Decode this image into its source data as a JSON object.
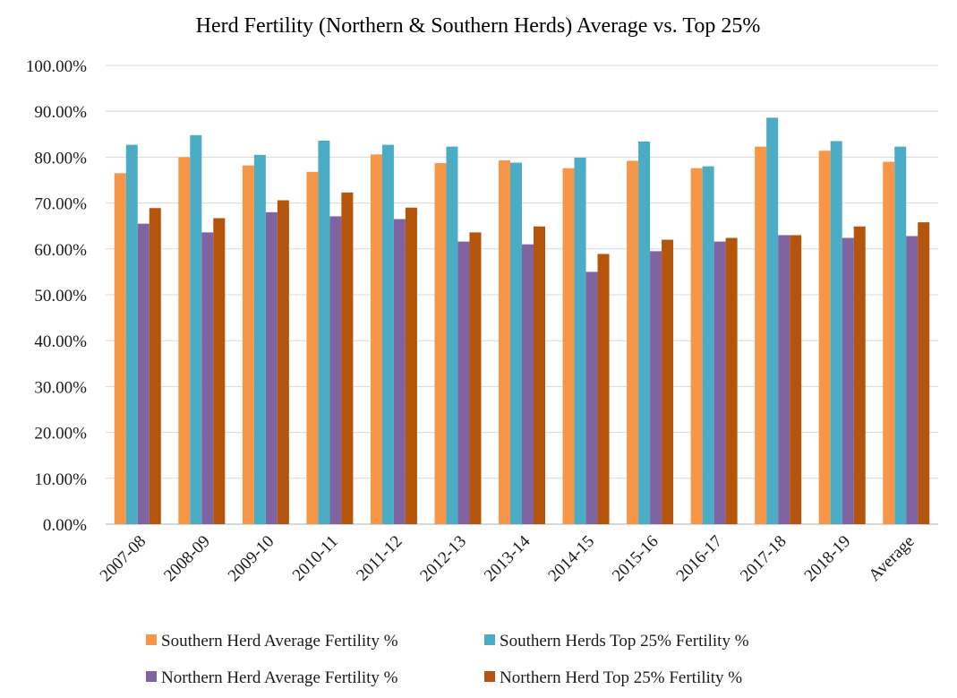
{
  "chart_data": {
    "type": "bar",
    "title": "Herd Fertility (Northern & Southern Herds) Average vs. Top 25%",
    "xlabel": "",
    "ylabel": "",
    "ylim": [
      0,
      100
    ],
    "yticks": [
      0,
      10,
      20,
      30,
      40,
      50,
      60,
      70,
      80,
      90,
      100
    ],
    "ytick_labels": [
      "0.00%",
      "10.00%",
      "20.00%",
      "30.00%",
      "40.00%",
      "50.00%",
      "60.00%",
      "70.00%",
      "80.00%",
      "90.00%",
      "100.00%"
    ],
    "grid": true,
    "legend_position": "bottom",
    "categories": [
      "2007-08",
      "2008-09",
      "2009-10",
      "2010-11",
      "2011-12",
      "2012-13",
      "2013-14",
      "2014-15",
      "2015-16",
      "2016-17",
      "2017-18",
      "2018-19",
      "Average"
    ],
    "series": [
      {
        "name": "Southern Herd Average Fertility %",
        "color": "#F79646",
        "values": [
          76.5,
          80.0,
          78.2,
          76.8,
          80.6,
          78.7,
          79.3,
          77.6,
          79.2,
          77.6,
          82.3,
          81.4,
          79.0
        ]
      },
      {
        "name": "Southern Herds Top 25% Fertility %",
        "color": "#4BACC6",
        "values": [
          82.7,
          84.8,
          80.5,
          83.6,
          82.7,
          82.3,
          78.8,
          79.9,
          83.4,
          78.0,
          88.6,
          83.5,
          82.3
        ]
      },
      {
        "name": "Northern Herd Average Fertility %",
        "color": "#8064A2",
        "values": [
          65.5,
          63.6,
          68.0,
          67.1,
          66.5,
          61.6,
          61.0,
          55.0,
          59.5,
          61.6,
          63.0,
          62.4,
          62.8
        ]
      },
      {
        "name": "Northern Herd Top 25% Fertility %",
        "color": "#B5540B",
        "values": [
          68.9,
          66.7,
          70.6,
          72.3,
          69.0,
          63.6,
          64.9,
          58.9,
          62.0,
          62.4,
          63.0,
          64.9,
          65.8
        ]
      }
    ]
  }
}
